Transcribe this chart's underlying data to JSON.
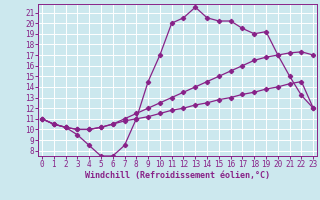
{
  "xlabel": "Windchill (Refroidissement éolien,°C)",
  "bg_color": "#cce8ee",
  "line_color": "#882288",
  "grid_color": "#aacccc",
  "x_values": [
    0,
    1,
    2,
    3,
    4,
    5,
    6,
    7,
    8,
    9,
    10,
    11,
    12,
    13,
    14,
    15,
    16,
    17,
    18,
    19,
    20,
    21,
    22,
    23
  ],
  "line_top_y": [
    11.0,
    10.5,
    10.2,
    9.5,
    8.5,
    7.5,
    7.5,
    8.5,
    11.0,
    14.5,
    17.0,
    20.0,
    20.5,
    21.5,
    20.5,
    20.2,
    20.2,
    19.5,
    19.0,
    19.2,
    17.0,
    15.0,
    13.2,
    12.0
  ],
  "line_mid_y": [
    11.0,
    10.5,
    10.2,
    10.0,
    10.0,
    10.2,
    10.5,
    11.0,
    11.5,
    12.0,
    12.5,
    13.0,
    13.5,
    14.0,
    14.5,
    15.0,
    15.5,
    16.0,
    16.5,
    16.8,
    17.0,
    17.2,
    17.3,
    17.0
  ],
  "line_bot_y": [
    11.0,
    10.5,
    10.2,
    10.0,
    10.0,
    10.2,
    10.5,
    10.8,
    11.0,
    11.2,
    11.5,
    11.8,
    12.0,
    12.3,
    12.5,
    12.8,
    13.0,
    13.3,
    13.5,
    13.8,
    14.0,
    14.3,
    14.5,
    12.0
  ],
  "ylim": [
    7.5,
    21.8
  ],
  "xlim": [
    -0.3,
    23.3
  ],
  "yticks": [
    8,
    9,
    10,
    11,
    12,
    13,
    14,
    15,
    16,
    17,
    18,
    19,
    20,
    21
  ],
  "xticks": [
    0,
    1,
    2,
    3,
    4,
    5,
    6,
    7,
    8,
    9,
    10,
    11,
    12,
    13,
    14,
    15,
    16,
    17,
    18,
    19,
    20,
    21,
    22,
    23
  ],
  "label_fontsize": 6,
  "tick_fontsize": 5.5
}
